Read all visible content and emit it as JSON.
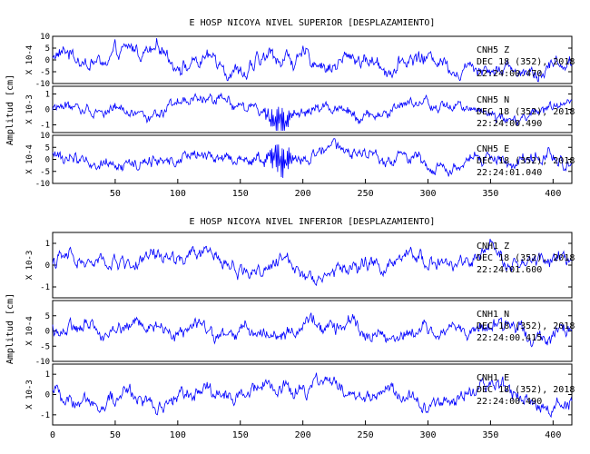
{
  "line_color": "#0000ff",
  "chart_data": [
    {
      "type": "line",
      "title": "E HOSP NICOYA NIVEL SUPERIOR [DESPLAZAMIENTO]",
      "ylabel": "Amplitud [cm]",
      "xlim": [
        0,
        415
      ],
      "xticks": [
        50,
        100,
        150,
        200,
        250,
        300,
        350,
        400
      ],
      "panels": [
        {
          "scale": "X 10-4",
          "ylim": [
            -10,
            10
          ],
          "yticks": [
            -10,
            -5,
            0,
            5,
            10
          ],
          "channel": "CNH5 Z",
          "date": "DEC 18 (352), 2018",
          "time": "22:24:00.470",
          "amp": 4.5,
          "base": 1.5,
          "burst_at": null
        },
        {
          "scale": "X 10-3",
          "ylim": [
            -1.5,
            1.5
          ],
          "yticks": [
            -1,
            0,
            1
          ],
          "channel": "CNH5 N",
          "date": "DEC 18 (352), 2018",
          "time": "22:24:00.490",
          "amp": 0.5,
          "base": 0.0,
          "burst_at": 182
        },
        {
          "scale": "X 10-4",
          "ylim": [
            -10,
            10
          ],
          "yticks": [
            -10,
            -5,
            0,
            5,
            10
          ],
          "channel": "CNH5 E",
          "date": "DEC 18 (352), 2018",
          "time": "22:24:01.040",
          "amp": 3.5,
          "base": 0.5,
          "burst_at": 182
        }
      ]
    },
    {
      "type": "line",
      "title": "E HOSP NICOYA NIVEL INFERIOR [DESPLAZAMIENTO]",
      "ylabel": "Amplitud [cm]",
      "xlim": [
        0,
        415
      ],
      "xticks": [
        0,
        50,
        100,
        150,
        200,
        250,
        300,
        350,
        400
      ],
      "panels": [
        {
          "scale": "X 10-3",
          "ylim": [
            -1.5,
            1.5
          ],
          "yticks": [
            -1,
            0,
            1
          ],
          "channel": "CNH1 Z",
          "date": "DEC 18 (352), 2018",
          "time": "22:24:01.600",
          "amp": 0.45,
          "base": 0.2,
          "burst_at": null
        },
        {
          "scale": "X 10-4",
          "ylim": [
            -10,
            10
          ],
          "yticks": [
            -10,
            -5,
            0,
            5
          ],
          "channel": "CNH1 N",
          "date": "DEC 18 (352), 2018",
          "time": "22:24:00.415",
          "amp": 3.2,
          "base": 0.0,
          "burst_at": null
        },
        {
          "scale": "X 10-3",
          "ylim": [
            -1.5,
            1.5
          ],
          "yticks": [
            -1,
            0,
            1
          ],
          "channel": "CNH1 E",
          "date": "DEC 18 (352), 2018",
          "time": "22:24:00.490",
          "amp": 0.5,
          "base": 0.0,
          "burst_at": null
        }
      ]
    }
  ]
}
